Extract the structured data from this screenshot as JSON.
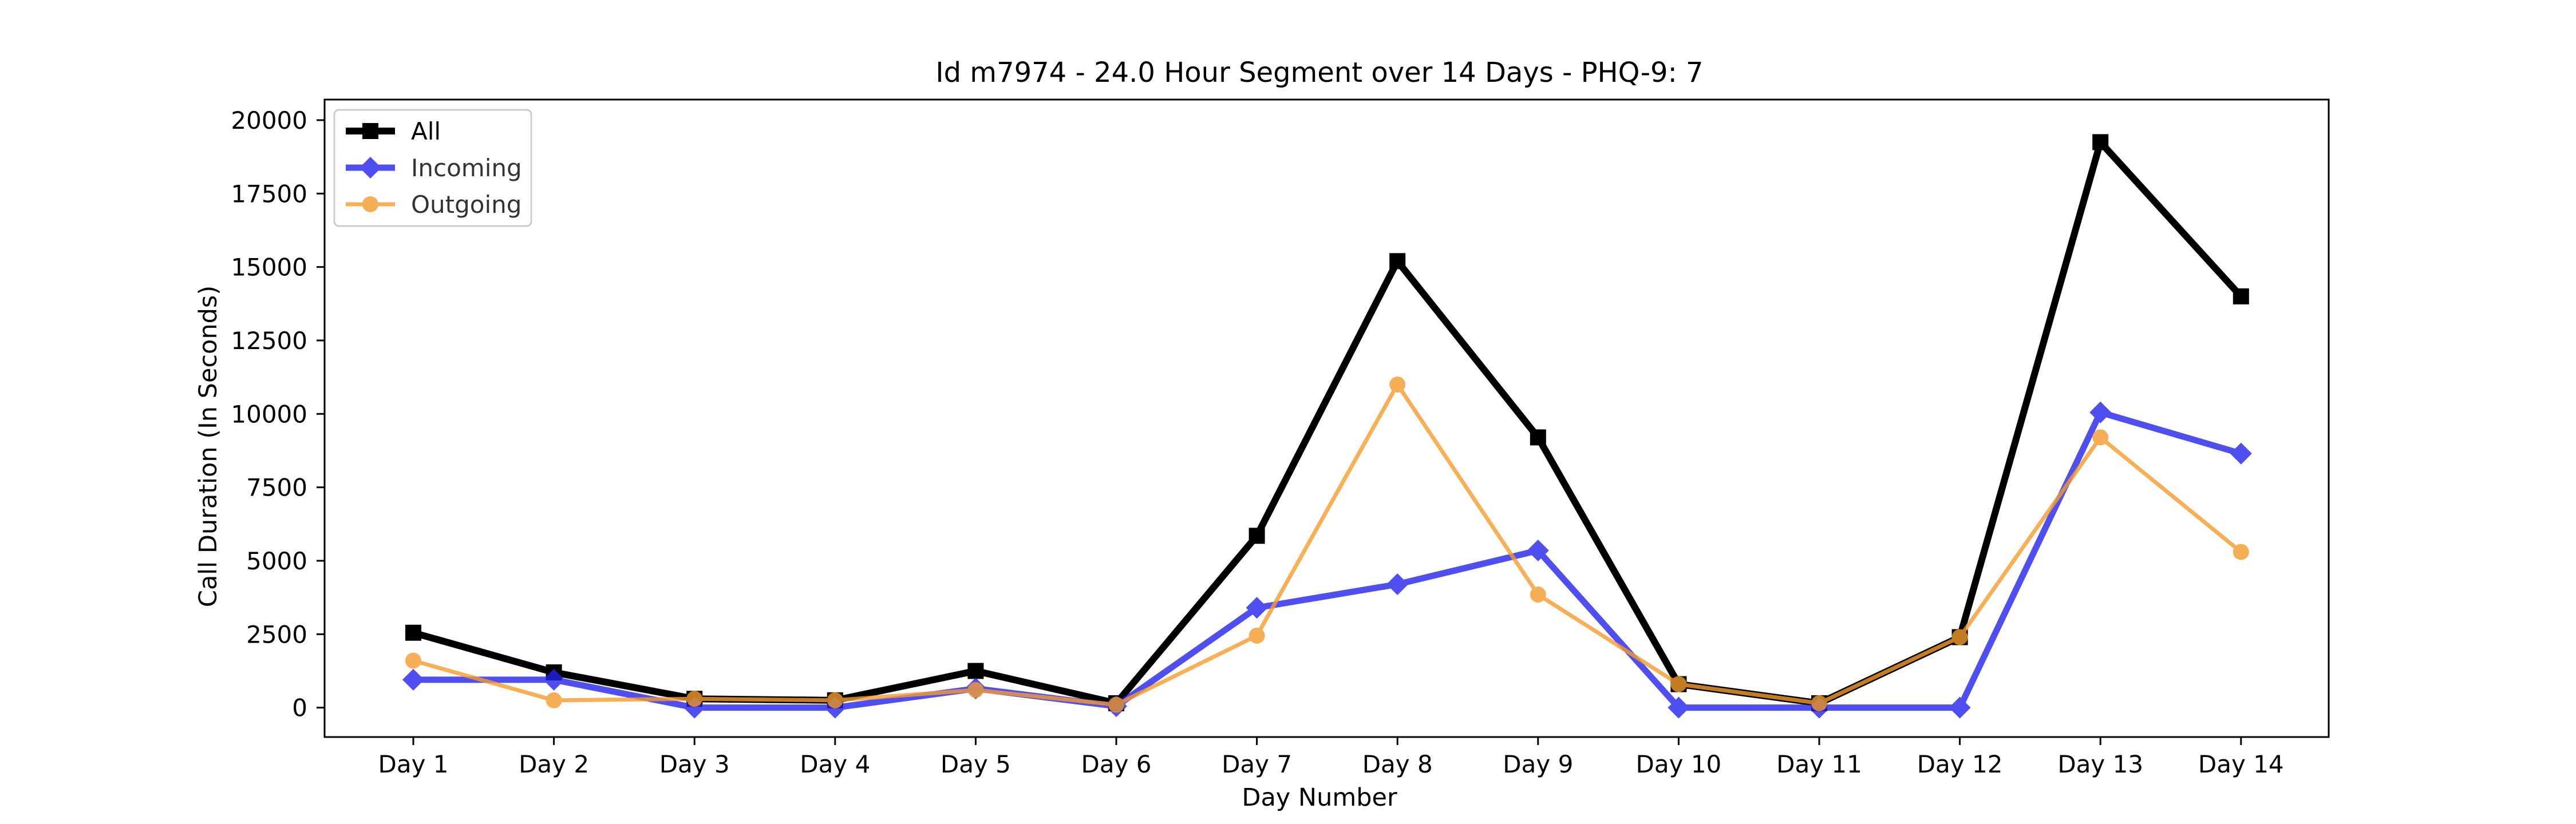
{
  "chart_data": {
    "type": "line",
    "title": "Id m7974 - 24.0 Hour Segment over 14 Days - PHQ-9: 7",
    "xlabel": "Day Number",
    "ylabel": "Call Duration (In Seconds)",
    "categories": [
      "Day 1",
      "Day 2",
      "Day 3",
      "Day 4",
      "Day 5",
      "Day 6",
      "Day 7",
      "Day 8",
      "Day 9",
      "Day 10",
      "Day 11",
      "Day 12",
      "Day 13",
      "Day 14"
    ],
    "ylim": [
      -1000,
      20700
    ],
    "yticks": [
      0,
      2500,
      5000,
      7500,
      10000,
      12500,
      15000,
      17500,
      20000
    ],
    "ytick_labels": [
      "0",
      "2500",
      "5000",
      "7500",
      "10000",
      "12500",
      "15000",
      "17500",
      "20000"
    ],
    "grid": false,
    "legend_position": "upper-left",
    "series": [
      {
        "name": "All",
        "color": "#000000",
        "marker": "square",
        "values": [
          2550,
          1200,
          300,
          250,
          1250,
          150,
          5850,
          15200,
          9200,
          800,
          150,
          2400,
          19250,
          14000
        ]
      },
      {
        "name": "Incoming",
        "color": "#2222ee",
        "marker": "diamond",
        "values": [
          950,
          950,
          0,
          0,
          650,
          50,
          3400,
          4200,
          5350,
          0,
          0,
          0,
          10050,
          8650
        ]
      },
      {
        "name": "Outgoing",
        "color": "#f59c2c",
        "marker": "circle",
        "values": [
          1600,
          250,
          300,
          250,
          600,
          100,
          2450,
          11000,
          3850,
          800,
          150,
          2400,
          9200,
          5300
        ]
      }
    ]
  }
}
